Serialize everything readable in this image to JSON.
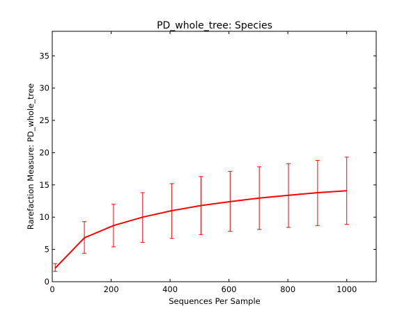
{
  "chart_data": {
    "type": "line",
    "title": "PD_whole_tree: Species",
    "xlabel": "Sequences Per Sample",
    "ylabel": "Rarefaction Measure: PD_whole_tree",
    "xlim": [
      0,
      1100
    ],
    "ylim": [
      0,
      38.8
    ],
    "xticks": [
      0,
      200,
      400,
      600,
      800,
      1000
    ],
    "yticks": [
      0,
      5,
      10,
      15,
      20,
      25,
      30,
      35
    ],
    "grid": false,
    "series": [
      {
        "color": "#ff0000",
        "x": [
          10,
          109,
          208,
          307,
          406,
          505,
          604,
          703,
          802,
          901,
          1000
        ],
        "y": [
          2.1,
          6.8,
          8.7,
          10.0,
          11.0,
          11.8,
          12.4,
          12.95,
          13.4,
          13.8,
          14.1
        ],
        "err_low": [
          1.6,
          4.4,
          5.4,
          6.1,
          6.7,
          7.3,
          7.8,
          8.1,
          8.4,
          8.7,
          8.9
        ],
        "err_high": [
          2.8,
          9.3,
          12.0,
          13.8,
          15.2,
          16.3,
          17.1,
          17.8,
          18.3,
          18.8,
          19.3
        ]
      }
    ]
  }
}
